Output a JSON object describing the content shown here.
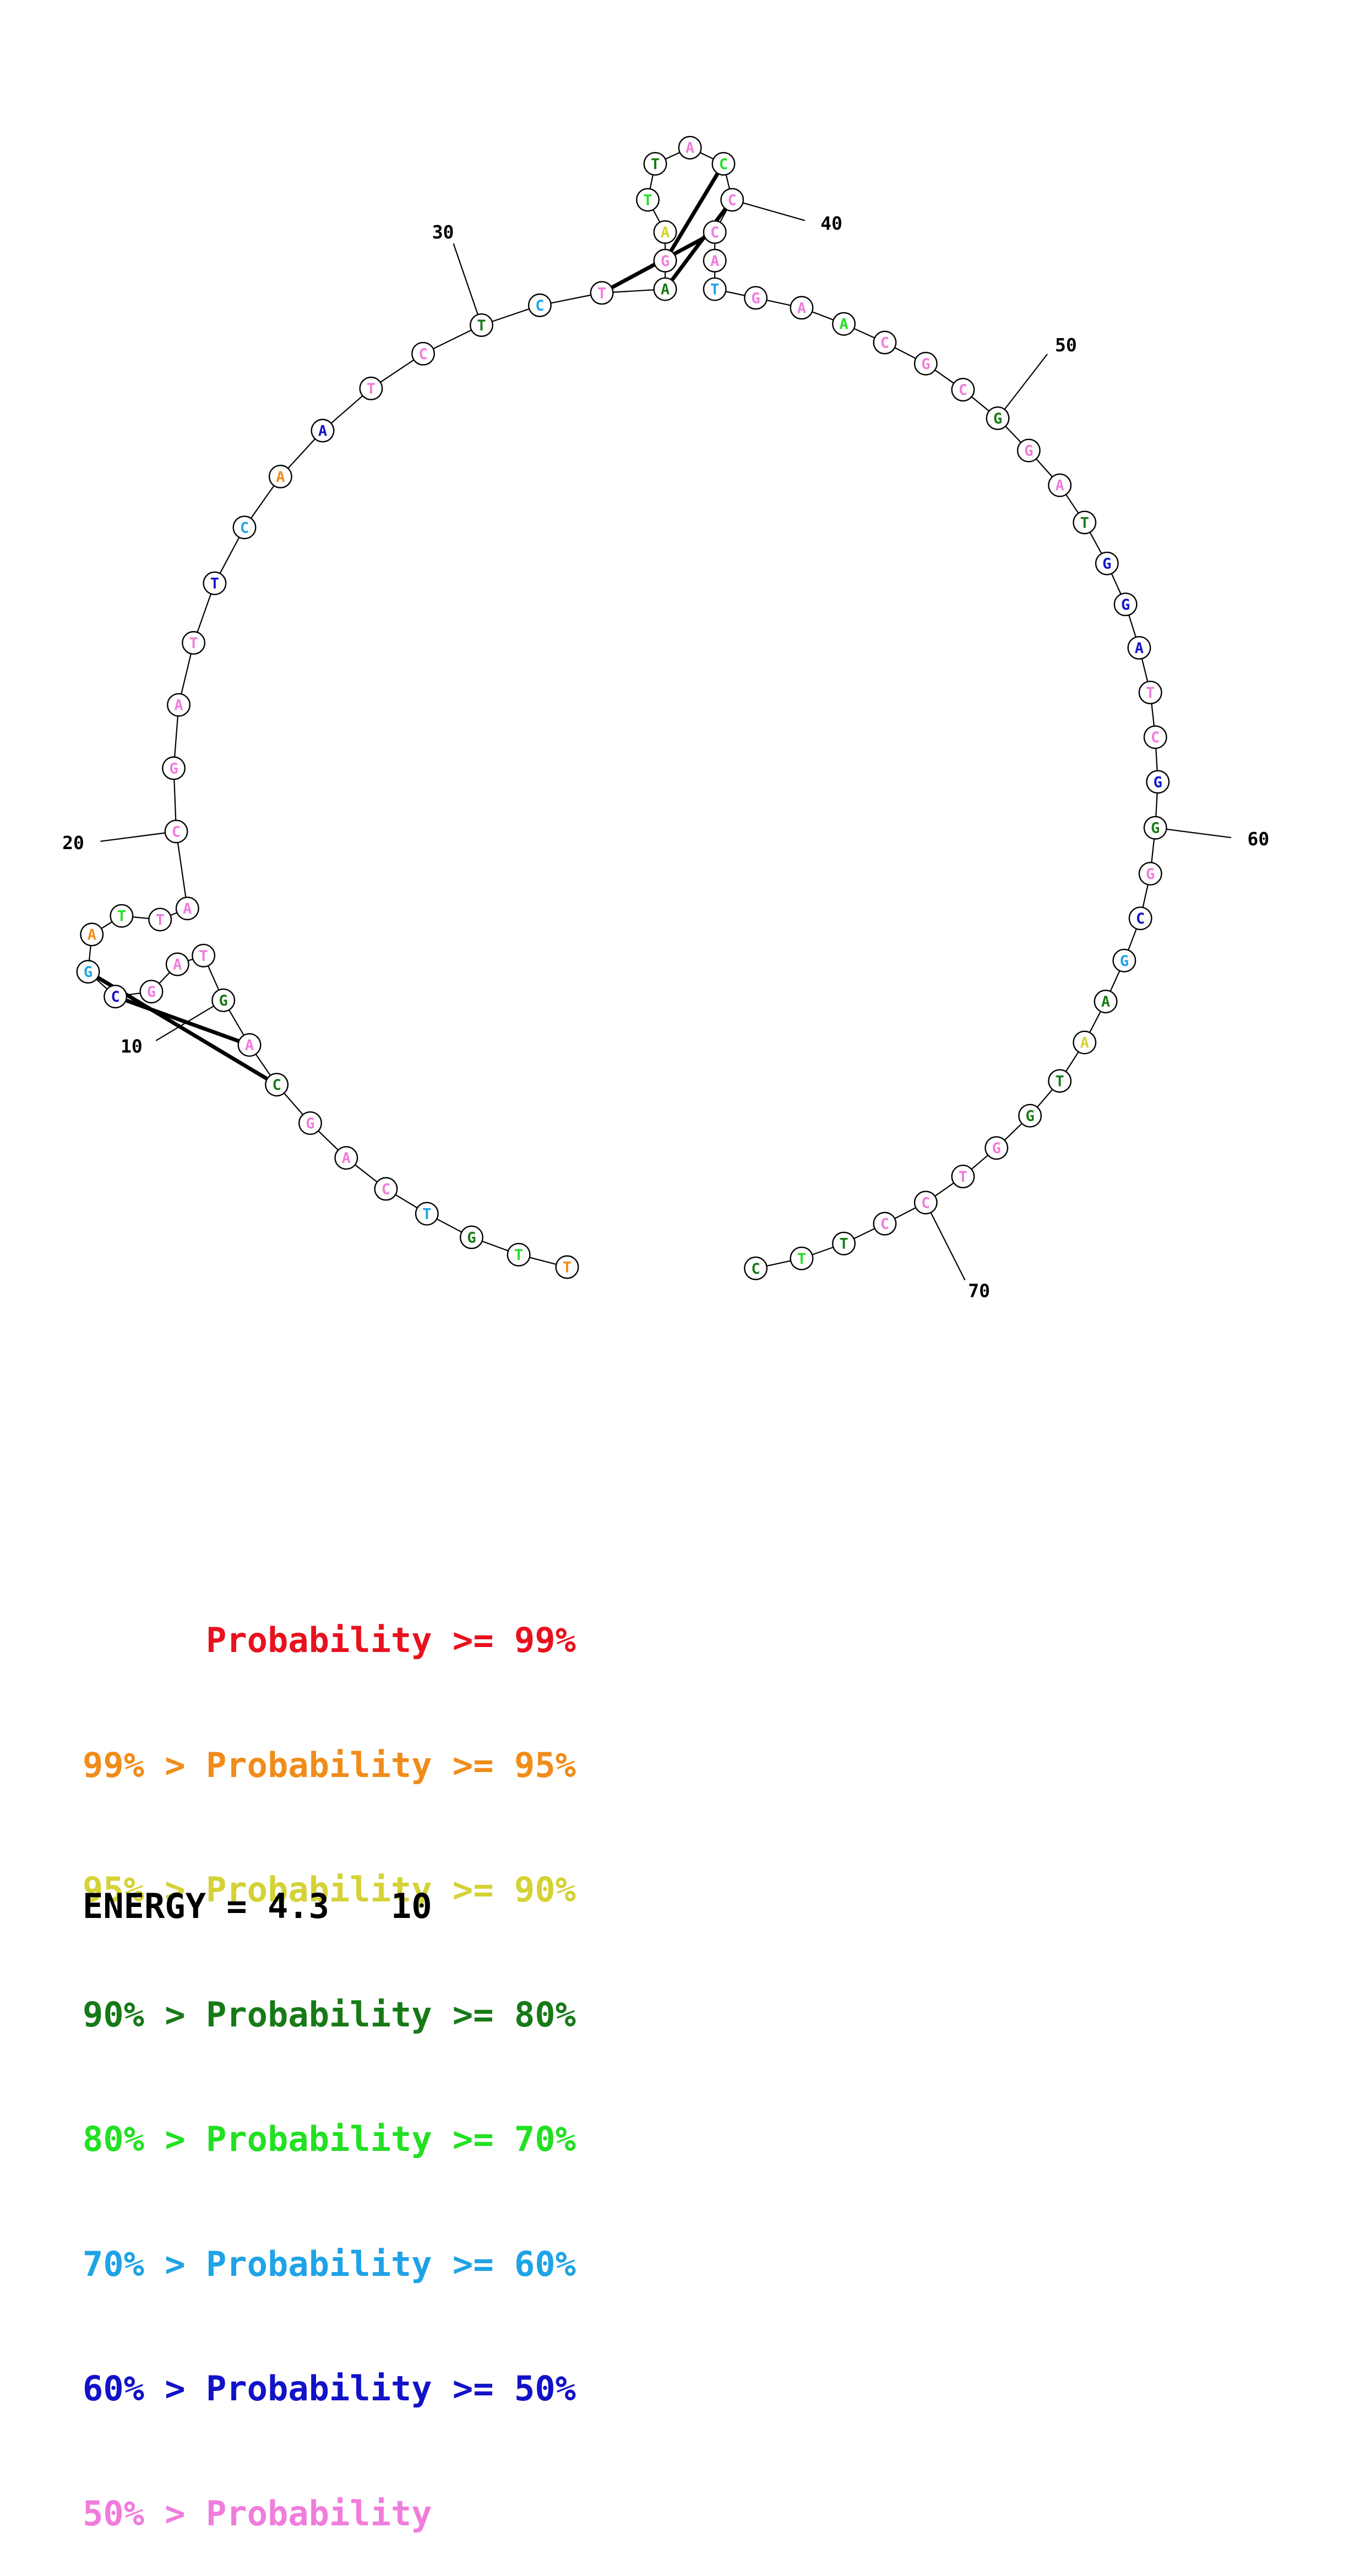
{
  "sequence": [
    "T",
    "T",
    "G",
    "T",
    "C",
    "A",
    "G",
    "C",
    "A",
    "G",
    "T",
    "A",
    "G",
    "C",
    "G",
    "A",
    "T",
    "T",
    "A",
    "C",
    "G",
    "A",
    "T",
    "T",
    "C",
    "A",
    "A",
    "T",
    "C",
    "T",
    "C",
    "T",
    "A",
    "G",
    "A",
    "T",
    "T",
    "A",
    "C",
    "C",
    "C",
    "A",
    "T",
    "G",
    "A",
    "A",
    "C",
    "G",
    "C",
    "G",
    "G",
    "A",
    "T",
    "G",
    "G",
    "A",
    "T",
    "C",
    "G",
    "G",
    "G",
    "C",
    "G",
    "A",
    "A",
    "T",
    "G",
    "G",
    "T",
    "C",
    "C",
    "T",
    "T",
    "C"
  ],
  "colors": {
    "p99": "#e8121e",
    "p95": "#f08c1a",
    "p90": "#d4d234",
    "p80": "#177a17",
    "p70": "#22e022",
    "p60": "#1ea3e6",
    "p50": "#1212c8",
    "below50": "#f07cdc"
  },
  "base_color_classes": [
    "p95",
    "p70",
    "p80",
    "p60",
    "below50",
    "below50",
    "below50",
    "p80",
    "below50",
    "p80",
    "below50",
    "below50",
    "below50",
    "p50",
    "p60",
    "p95",
    "p70",
    "below50",
    "below50",
    "below50",
    "below50",
    "below50",
    "below50",
    "p50",
    "p60",
    "p95",
    "p50",
    "below50",
    "below50",
    "p80",
    "p60",
    "below50",
    "p80",
    "below50",
    "p90",
    "p70",
    "p80",
    "below50",
    "p70",
    "below50",
    "below50",
    "below50",
    "p60",
    "below50",
    "below50",
    "p70",
    "below50",
    "below50",
    "below50",
    "p80",
    "below50",
    "below50",
    "p80",
    "p50",
    "p50",
    "p50",
    "below50",
    "below50",
    "p50",
    "p80",
    "below50",
    "p50",
    "p60",
    "p80",
    "p90",
    "p80",
    "p80",
    "below50",
    "below50",
    "below50",
    "below50",
    "p80",
    "p70",
    "p80"
  ],
  "pairs": [
    [
      9,
      14
    ],
    [
      8,
      15
    ],
    [
      32,
      41
    ],
    [
      33,
      40
    ],
    [
      34,
      39
    ]
  ],
  "position_labels": [
    "10",
    "20",
    "30",
    "40",
    "50",
    "60",
    "70"
  ],
  "legend": [
    {
      "text": "      Probability >= 99%",
      "color_key": "p99"
    },
    {
      "text": "99% > Probability >= 95%",
      "color_key": "p95"
    },
    {
      "text": "95% > Probability >= 90%",
      "color_key": "p90"
    },
    {
      "text": "90% > Probability >= 80%",
      "color_key": "p80"
    },
    {
      "text": "80% > Probability >= 70%",
      "color_key": "p70"
    },
    {
      "text": "70% > Probability >= 60%",
      "color_key": "p60"
    },
    {
      "text": "60% > Probability >= 50%",
      "color_key": "p50"
    },
    {
      "text": "50% > Probability",
      "color_key": "below50"
    }
  ],
  "energy_text": "ENERGY = 4.3   10"
}
